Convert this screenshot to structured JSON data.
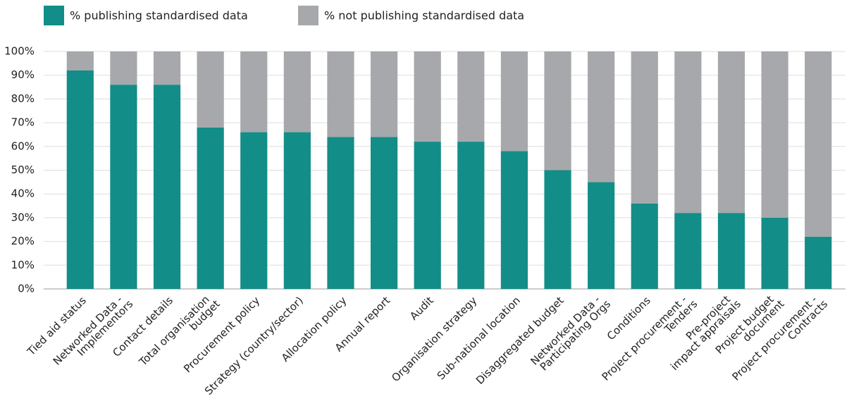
{
  "chart_data": {
    "type": "stacked_bar",
    "categories": [
      [
        "Tied aid status"
      ],
      [
        "Networked Data -",
        "Implementors"
      ],
      [
        "Contact details"
      ],
      [
        "Total organisation",
        "budget"
      ],
      [
        "Procurement policy"
      ],
      [
        "Strategy (country/sector)"
      ],
      [
        "Allocation policy"
      ],
      [
        "Annual report"
      ],
      [
        "Audit"
      ],
      [
        "Organisation strategy"
      ],
      [
        "Sub-national location"
      ],
      [
        "Disaggregated budget"
      ],
      [
        "Networked Data -",
        "Participating Orgs"
      ],
      [
        "Conditions"
      ],
      [
        "Project procurement -",
        "Tenders"
      ],
      [
        "Pre-project",
        "impact appraisals"
      ],
      [
        "Project budget",
        "document"
      ],
      [
        "Project procurement -",
        "Contracts"
      ]
    ],
    "series": [
      {
        "name": "% publishing standardised data",
        "color": "#138d88",
        "values": [
          92,
          86,
          86,
          68,
          66,
          66,
          64,
          64,
          62,
          62,
          58,
          50,
          45,
          36,
          32,
          32,
          30,
          22
        ]
      },
      {
        "name": "% not publishing standardised data",
        "color": "#a7a8ab",
        "values": [
          8,
          14,
          14,
          32,
          34,
          34,
          36,
          36,
          38,
          38,
          42,
          50,
          55,
          64,
          68,
          68,
          70,
          78
        ]
      }
    ],
    "ylim": [
      0,
      100
    ],
    "yticks": [
      {
        "value": 0,
        "label": "0%"
      },
      {
        "value": 10,
        "label": "10%"
      },
      {
        "value": 20,
        "label": "20%"
      },
      {
        "value": 30,
        "label": "30%"
      },
      {
        "value": 40,
        "label": "40%"
      },
      {
        "value": 50,
        "label": "50%"
      },
      {
        "value": 60,
        "label": "60%"
      },
      {
        "value": 70,
        "label": "70%"
      },
      {
        "value": 80,
        "label": "80%"
      },
      {
        "value": 90,
        "label": "90%"
      },
      {
        "value": 100,
        "label": "100%"
      }
    ],
    "grid": true
  }
}
